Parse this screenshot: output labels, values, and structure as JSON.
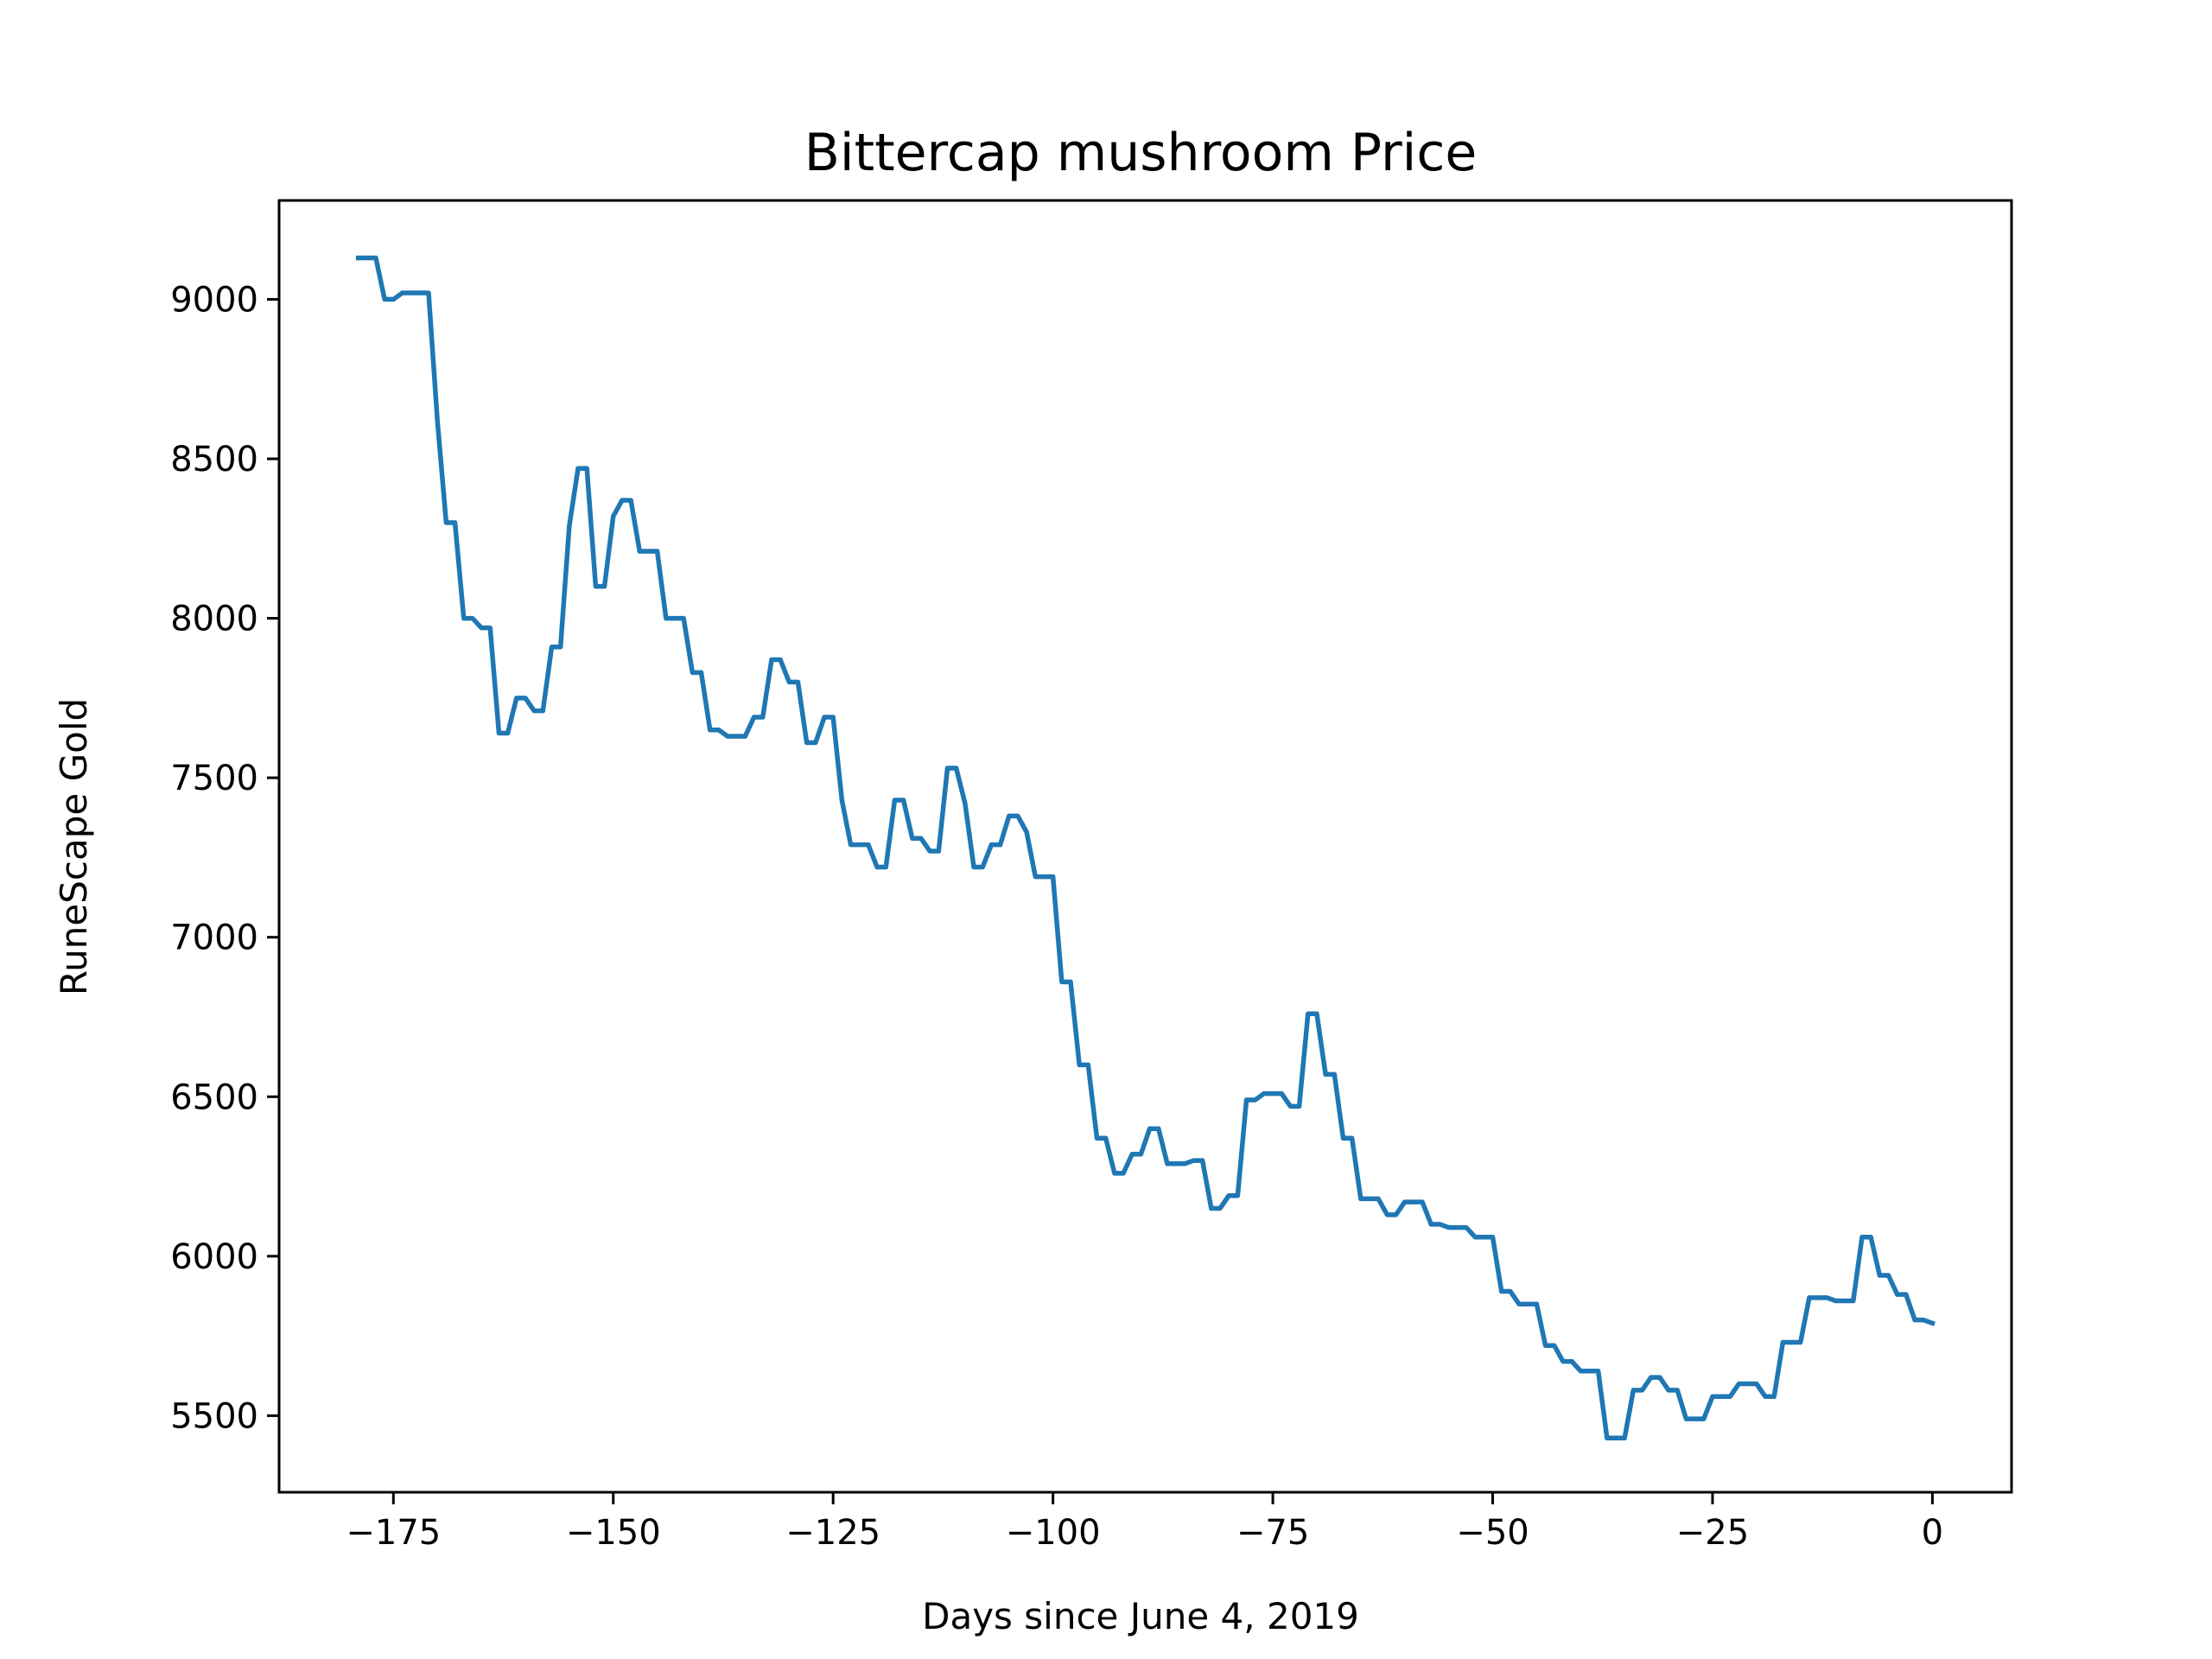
{
  "chart_data": {
    "type": "line",
    "title": "Bittercap mushroom Price",
    "xlabel": "Days since June 4, 2019",
    "ylabel": "RuneScape Gold",
    "xlim": [
      -188,
      9
    ],
    "ylim": [
      5260,
      9310
    ],
    "xticks": [
      -175,
      -150,
      -125,
      -100,
      -75,
      -50,
      -25,
      0
    ],
    "xtick_labels": [
      "−175",
      "−150",
      "−125",
      "−100",
      "−75",
      "−50",
      "−25",
      "0"
    ],
    "yticks": [
      5500,
      6000,
      6500,
      7000,
      7500,
      8000,
      8500,
      9000
    ],
    "ytick_labels": [
      "5500",
      "6000",
      "6500",
      "7000",
      "7500",
      "8000",
      "8500",
      "9000"
    ],
    "grid": false,
    "series": [
      {
        "color": "#1f77b4",
        "points": [
          [
            -179,
            9130
          ],
          [
            -178,
            9130
          ],
          [
            -177,
            9130
          ],
          [
            -176,
            9000
          ],
          [
            -175,
            9000
          ],
          [
            -174,
            9020
          ],
          [
            -173,
            9020
          ],
          [
            -172,
            9020
          ],
          [
            -171,
            9020
          ],
          [
            -170,
            8620
          ],
          [
            -169,
            8300
          ],
          [
            -168,
            8300
          ],
          [
            -167,
            8000
          ],
          [
            -166,
            8000
          ],
          [
            -165,
            7970
          ],
          [
            -164,
            7970
          ],
          [
            -163,
            7640
          ],
          [
            -162,
            7640
          ],
          [
            -161,
            7750
          ],
          [
            -160,
            7750
          ],
          [
            -159,
            7710
          ],
          [
            -158,
            7710
          ],
          [
            -157,
            7910
          ],
          [
            -156,
            7910
          ],
          [
            -155,
            8290
          ],
          [
            -154,
            8470
          ],
          [
            -153,
            8470
          ],
          [
            -152,
            8100
          ],
          [
            -151,
            8100
          ],
          [
            -150,
            8320
          ],
          [
            -149,
            8370
          ],
          [
            -148,
            8370
          ],
          [
            -147,
            8210
          ],
          [
            -146,
            8210
          ],
          [
            -145,
            8210
          ],
          [
            -144,
            8000
          ],
          [
            -143,
            8000
          ],
          [
            -142,
            8000
          ],
          [
            -141,
            7830
          ],
          [
            -140,
            7830
          ],
          [
            -139,
            7650
          ],
          [
            -138,
            7650
          ],
          [
            -137,
            7630
          ],
          [
            -136,
            7630
          ],
          [
            -135,
            7630
          ],
          [
            -134,
            7690
          ],
          [
            -133,
            7690
          ],
          [
            -132,
            7870
          ],
          [
            -131,
            7870
          ],
          [
            -130,
            7800
          ],
          [
            -129,
            7800
          ],
          [
            -128,
            7610
          ],
          [
            -127,
            7610
          ],
          [
            -126,
            7690
          ],
          [
            -125,
            7690
          ],
          [
            -124,
            7430
          ],
          [
            -123,
            7290
          ],
          [
            -122,
            7290
          ],
          [
            -121,
            7290
          ],
          [
            -120,
            7220
          ],
          [
            -119,
            7220
          ],
          [
            -118,
            7430
          ],
          [
            -117,
            7430
          ],
          [
            -116,
            7310
          ],
          [
            -115,
            7310
          ],
          [
            -114,
            7270
          ],
          [
            -113,
            7270
          ],
          [
            -112,
            7530
          ],
          [
            -111,
            7530
          ],
          [
            -110,
            7420
          ],
          [
            -109,
            7220
          ],
          [
            -108,
            7220
          ],
          [
            -107,
            7290
          ],
          [
            -106,
            7290
          ],
          [
            -105,
            7380
          ],
          [
            -104,
            7380
          ],
          [
            -103,
            7330
          ],
          [
            -102,
            7190
          ],
          [
            -101,
            7190
          ],
          [
            -100,
            7190
          ],
          [
            -99,
            6860
          ],
          [
            -98,
            6860
          ],
          [
            -97,
            6600
          ],
          [
            -96,
            6600
          ],
          [
            -95,
            6370
          ],
          [
            -94,
            6370
          ],
          [
            -93,
            6260
          ],
          [
            -92,
            6260
          ],
          [
            -91,
            6320
          ],
          [
            -90,
            6320
          ],
          [
            -89,
            6400
          ],
          [
            -88,
            6400
          ],
          [
            -87,
            6290
          ],
          [
            -86,
            6290
          ],
          [
            -85,
            6290
          ],
          [
            -84,
            6300
          ],
          [
            -83,
            6300
          ],
          [
            -82,
            6150
          ],
          [
            -81,
            6150
          ],
          [
            -80,
            6190
          ],
          [
            -79,
            6190
          ],
          [
            -78,
            6490
          ],
          [
            -77,
            6490
          ],
          [
            -76,
            6510
          ],
          [
            -75,
            6510
          ],
          [
            -74,
            6510
          ],
          [
            -73,
            6470
          ],
          [
            -72,
            6470
          ],
          [
            -71,
            6760
          ],
          [
            -70,
            6760
          ],
          [
            -69,
            6570
          ],
          [
            -68,
            6570
          ],
          [
            -67,
            6370
          ],
          [
            -66,
            6370
          ],
          [
            -65,
            6180
          ],
          [
            -64,
            6180
          ],
          [
            -63,
            6180
          ],
          [
            -62,
            6130
          ],
          [
            -61,
            6130
          ],
          [
            -60,
            6170
          ],
          [
            -59,
            6170
          ],
          [
            -58,
            6170
          ],
          [
            -57,
            6100
          ],
          [
            -56,
            6100
          ],
          [
            -55,
            6090
          ],
          [
            -54,
            6090
          ],
          [
            -53,
            6090
          ],
          [
            -52,
            6060
          ],
          [
            -51,
            6060
          ],
          [
            -50,
            6060
          ],
          [
            -49,
            5890
          ],
          [
            -48,
            5890
          ],
          [
            -47,
            5850
          ],
          [
            -46,
            5850
          ],
          [
            -45,
            5850
          ],
          [
            -44,
            5720
          ],
          [
            -43,
            5720
          ],
          [
            -42,
            5670
          ],
          [
            -41,
            5670
          ],
          [
            -40,
            5640
          ],
          [
            -39,
            5640
          ],
          [
            -38,
            5640
          ],
          [
            -37,
            5430
          ],
          [
            -36,
            5430
          ],
          [
            -35,
            5430
          ],
          [
            -34,
            5580
          ],
          [
            -33,
            5580
          ],
          [
            -32,
            5620
          ],
          [
            -31,
            5620
          ],
          [
            -30,
            5580
          ],
          [
            -29,
            5580
          ],
          [
            -28,
            5490
          ],
          [
            -27,
            5490
          ],
          [
            -26,
            5490
          ],
          [
            -25,
            5560
          ],
          [
            -24,
            5560
          ],
          [
            -23,
            5560
          ],
          [
            -22,
            5600
          ],
          [
            -21,
            5600
          ],
          [
            -20,
            5600
          ],
          [
            -19,
            5560
          ],
          [
            -18,
            5560
          ],
          [
            -17,
            5730
          ],
          [
            -16,
            5730
          ],
          [
            -15,
            5730
          ],
          [
            -14,
            5870
          ],
          [
            -13,
            5870
          ],
          [
            -12,
            5870
          ],
          [
            -11,
            5860
          ],
          [
            -10,
            5860
          ],
          [
            -9,
            5860
          ],
          [
            -8,
            6060
          ],
          [
            -7,
            6060
          ],
          [
            -6,
            5940
          ],
          [
            -5,
            5940
          ],
          [
            -4,
            5880
          ],
          [
            -3,
            5880
          ],
          [
            -2,
            5800
          ],
          [
            -1,
            5800
          ],
          [
            0,
            5790
          ]
        ]
      }
    ]
  }
}
